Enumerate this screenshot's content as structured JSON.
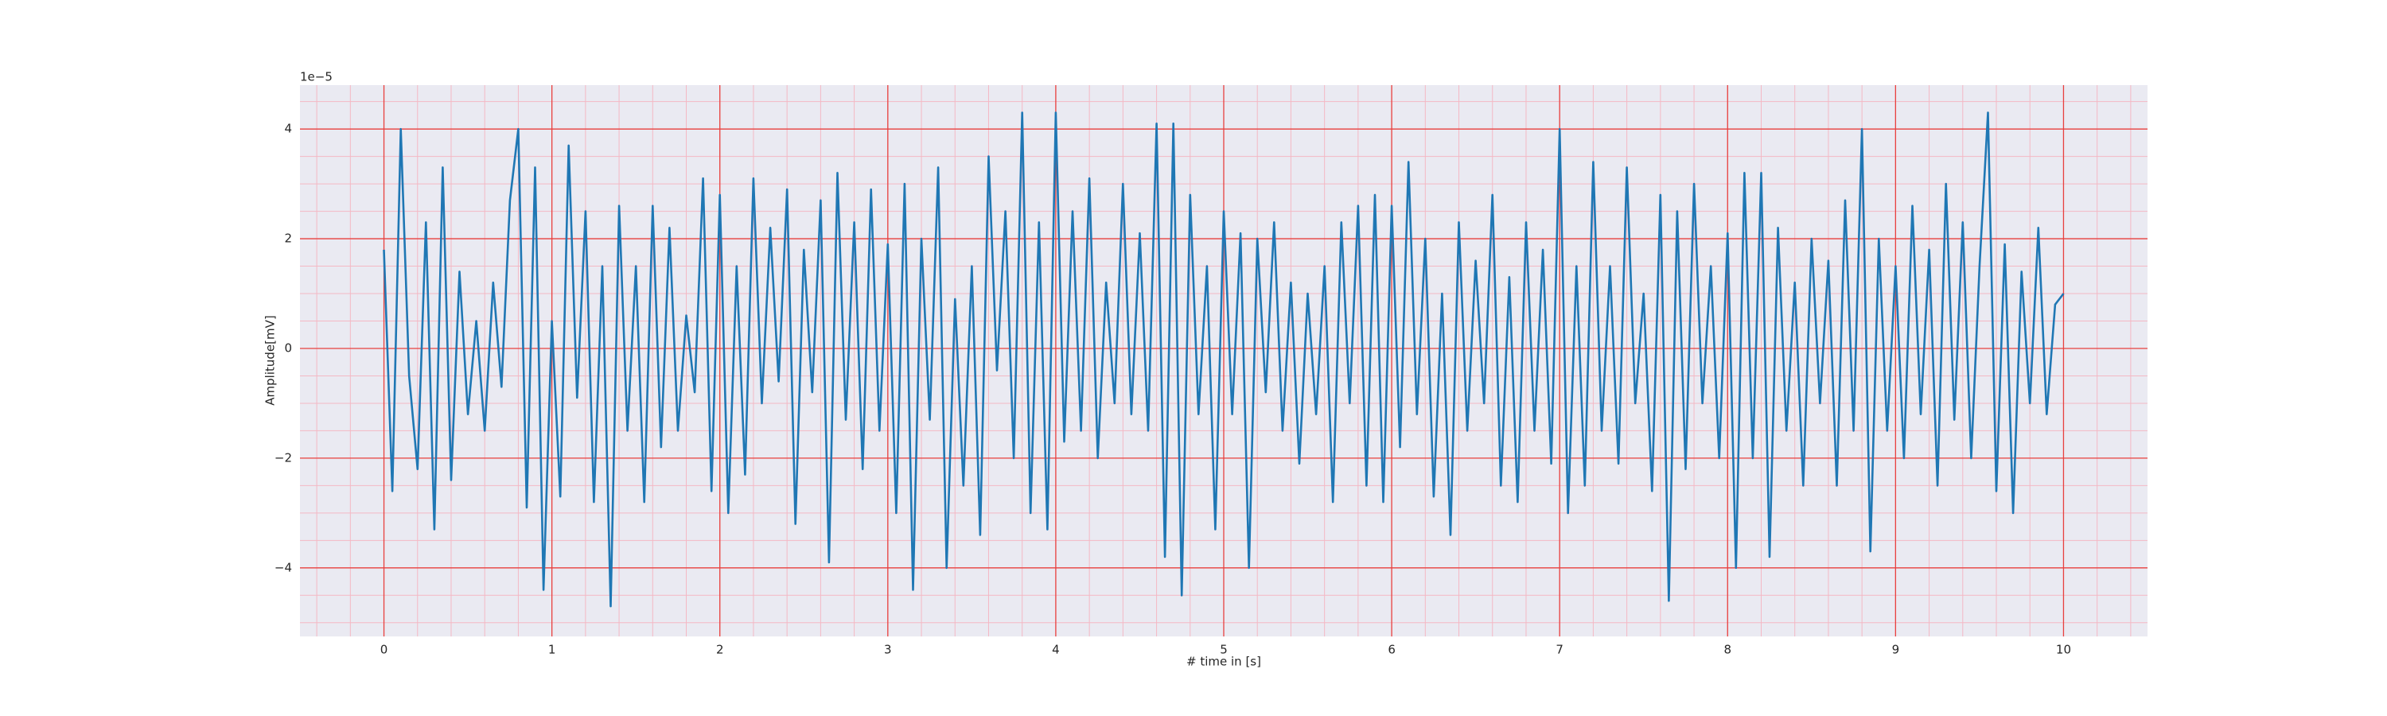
{
  "chart_data": {
    "type": "line",
    "title_offset": "1e−5",
    "xlabel": "# time in [s]",
    "ylabel": "Amplitude[mV]",
    "xlim": [
      -0.5,
      10.5
    ],
    "ylim": [
      -5.25,
      4.8
    ],
    "xticks": [
      0,
      1,
      2,
      3,
      4,
      5,
      6,
      7,
      8,
      9,
      10
    ],
    "yticks": [
      {
        "value": -4,
        "label": "−4"
      },
      {
        "value": -2,
        "label": "−2"
      },
      0,
      2,
      4
    ],
    "grid": true,
    "minor_grid": true,
    "x": [
      0,
      0.05,
      0.1,
      0.15,
      0.2,
      0.25,
      0.3,
      0.35,
      0.4,
      0.45,
      0.5,
      0.55,
      0.6,
      0.65,
      0.7,
      0.75,
      0.8,
      0.85,
      0.9,
      0.95,
      1,
      1.05,
      1.1,
      1.15,
      1.2,
      1.25,
      1.3,
      1.35,
      1.4,
      1.45,
      1.5,
      1.55,
      1.6,
      1.65,
      1.7,
      1.75,
      1.8,
      1.85,
      1.9,
      1.95,
      2,
      2.05,
      2.1,
      2.15,
      2.2,
      2.25,
      2.3,
      2.35,
      2.4,
      2.45,
      2.5,
      2.55,
      2.6,
      2.65,
      2.7,
      2.75,
      2.8,
      2.85,
      2.9,
      2.95,
      3,
      3.05,
      3.1,
      3.15,
      3.2,
      3.25,
      3.3,
      3.35,
      3.4,
      3.45,
      3.5,
      3.55,
      3.6,
      3.65,
      3.7,
      3.75,
      3.8,
      3.85,
      3.9,
      3.95,
      4,
      4.05,
      4.1,
      4.15,
      4.2,
      4.25,
      4.3,
      4.35,
      4.4,
      4.45,
      4.5,
      4.55,
      4.6,
      4.65,
      4.7,
      4.75,
      4.8,
      4.85,
      4.9,
      4.95,
      5,
      5.05,
      5.1,
      5.15,
      5.2,
      5.25,
      5.3,
      5.35,
      5.4,
      5.45,
      5.5,
      5.55,
      5.6,
      5.65,
      5.7,
      5.75,
      5.8,
      5.85,
      5.9,
      5.95,
      6,
      6.05,
      6.1,
      6.15,
      6.2,
      6.25,
      6.3,
      6.35,
      6.4,
      6.45,
      6.5,
      6.55,
      6.6,
      6.65,
      6.7,
      6.75,
      6.8,
      6.85,
      6.9,
      6.95,
      7,
      7.05,
      7.1,
      7.15,
      7.2,
      7.25,
      7.3,
      7.35,
      7.4,
      7.45,
      7.5,
      7.55,
      7.6,
      7.65,
      7.7,
      7.75,
      7.8,
      7.85,
      7.9,
      7.95,
      8,
      8.05,
      8.1,
      8.15,
      8.2,
      8.25,
      8.3,
      8.35,
      8.4,
      8.45,
      8.5,
      8.55,
      8.6,
      8.65,
      8.7,
      8.75,
      8.8,
      8.85,
      8.9,
      8.95,
      9,
      9.05,
      9.1,
      9.15,
      9.2,
      9.25,
      9.3,
      9.35,
      9.4,
      9.45,
      9.5,
      9.55,
      9.6,
      9.65,
      9.7,
      9.75,
      9.8,
      9.85,
      9.9,
      9.95,
      10
    ],
    "series": [
      {
        "color": "#1f77b4",
        "values": [
          1.8,
          -2.6,
          4.0,
          -0.5,
          -2.2,
          2.3,
          -3.3,
          3.3,
          -2.4,
          1.4,
          -1.2,
          0.5,
          -1.5,
          1.2,
          -0.7,
          2.7,
          4.0,
          -2.9,
          3.3,
          -4.4,
          0.5,
          -2.7,
          3.7,
          -0.9,
          2.5,
          -2.8,
          1.5,
          -4.7,
          2.6,
          -1.5,
          1.5,
          -2.8,
          2.6,
          -1.8,
          2.2,
          -1.5,
          0.6,
          -0.8,
          3.1,
          -2.6,
          2.8,
          -3.0,
          1.5,
          -2.3,
          3.1,
          -1.0,
          2.2,
          -0.6,
          2.9,
          -3.2,
          1.8,
          -0.8,
          2.7,
          -3.9,
          3.2,
          -1.3,
          2.3,
          -2.2,
          2.9,
          -1.5,
          1.9,
          -3.0,
          3.0,
          -4.4,
          2.0,
          -1.3,
          3.3,
          -4.0,
          0.9,
          -2.5,
          1.5,
          -3.4,
          3.5,
          -0.4,
          2.5,
          -2.0,
          4.3,
          -3.0,
          2.3,
          -3.3,
          4.3,
          -1.7,
          2.5,
          -1.5,
          3.1,
          -2.0,
          1.2,
          -1.0,
          3.0,
          -1.2,
          2.1,
          -1.5,
          4.1,
          -3.8,
          4.1,
          -4.5,
          2.8,
          -1.2,
          1.5,
          -3.3,
          2.5,
          -1.2,
          2.1,
          -4.0,
          2.0,
          -0.8,
          2.3,
          -1.5,
          1.2,
          -2.1,
          1.0,
          -1.2,
          1.5,
          -2.8,
          2.3,
          -1.0,
          2.6,
          -2.5,
          2.8,
          -2.8,
          2.6,
          -1.8,
          3.4,
          -1.2,
          2.0,
          -2.7,
          1.0,
          -3.4,
          2.3,
          -1.5,
          1.6,
          -1.0,
          2.8,
          -2.5,
          1.3,
          -2.8,
          2.3,
          -1.5,
          1.8,
          -2.1,
          4.0,
          -3.0,
          1.5,
          -2.5,
          3.4,
          -1.5,
          1.5,
          -2.1,
          3.3,
          -1.0,
          1.0,
          -2.6,
          2.8,
          -4.6,
          2.5,
          -2.2,
          3.0,
          -1.0,
          1.5,
          -2.0,
          2.1,
          -4.0,
          3.2,
          -2.0,
          3.2,
          -3.8,
          2.2,
          -1.5,
          1.2,
          -2.5,
          2.0,
          -1.0,
          1.6,
          -2.5,
          2.7,
          -1.5,
          4.0,
          -3.7,
          2.0,
          -1.5,
          1.5,
          -2.0,
          2.6,
          -1.2,
          1.8,
          -2.5,
          3.0,
          -1.3,
          2.3,
          -2.0,
          1.5,
          4.3,
          -2.6,
          1.9,
          -3.0,
          1.4,
          -1.0,
          2.2,
          -1.2,
          0.8,
          1.0
        ]
      }
    ]
  }
}
